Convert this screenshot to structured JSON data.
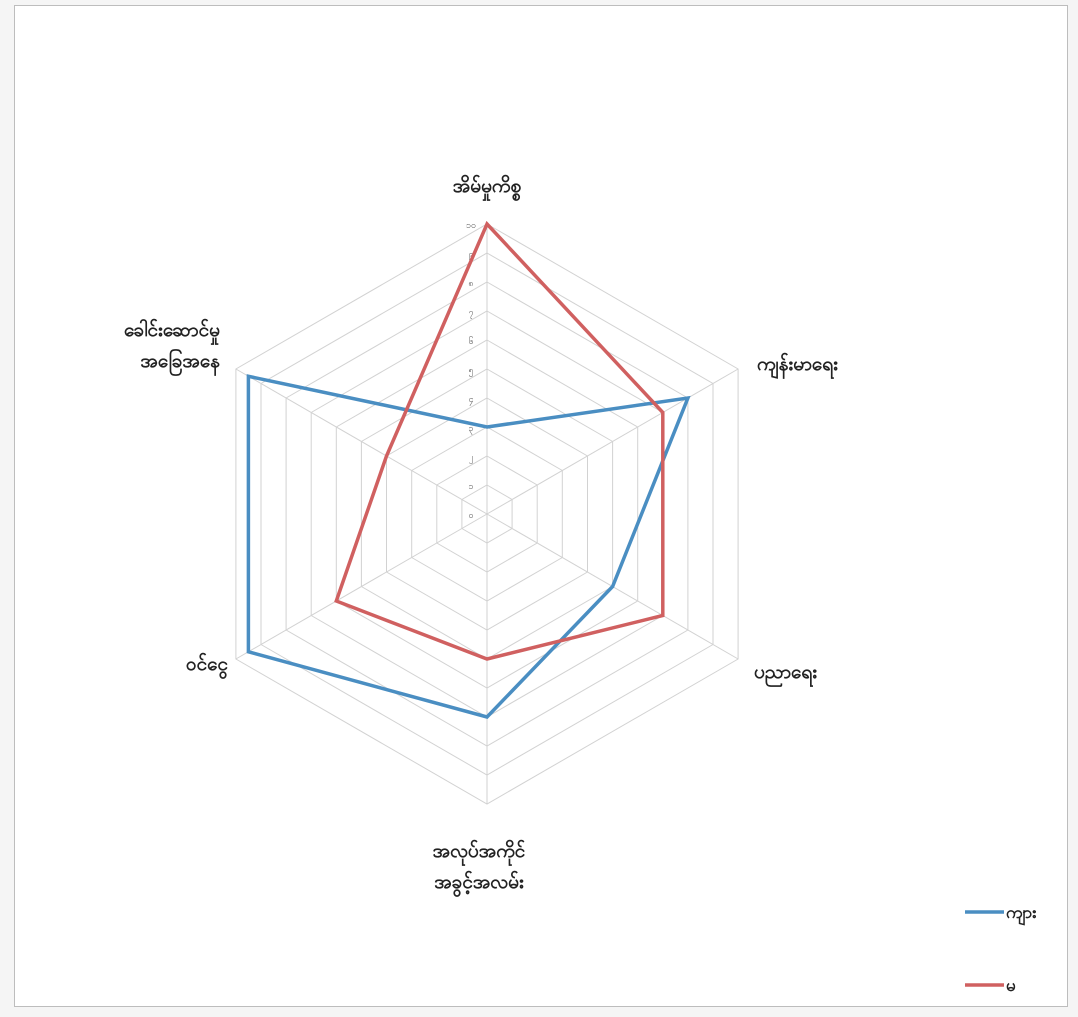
{
  "chart_data": {
    "type": "radar",
    "axes": [
      "အိမ်မှုကိစ္စ",
      "ကျန်းမာရေး",
      "ပညာရေး",
      "အလုပ်အကိုင်\nအခွင့်အလမ်း",
      "ဝင်ငွေ",
      "ခေါင်းဆောင်မှု\nအခြေအနေ"
    ],
    "ticks": [
      "၀",
      "၁",
      "၂",
      "၃",
      "၄",
      "၅",
      "၆",
      "၇",
      "၈",
      "၉",
      "၁၀"
    ],
    "range": [
      0,
      10
    ],
    "series": [
      {
        "name": "ကျား",
        "color": "#4a8ec2",
        "values": [
          3,
          8,
          5,
          7,
          9.5,
          9.5
        ]
      },
      {
        "name": "မ",
        "color": "#d06060",
        "values": [
          10,
          7,
          7,
          5,
          6,
          4
        ]
      }
    ],
    "legend_position": "bottom-right",
    "grid": true
  }
}
